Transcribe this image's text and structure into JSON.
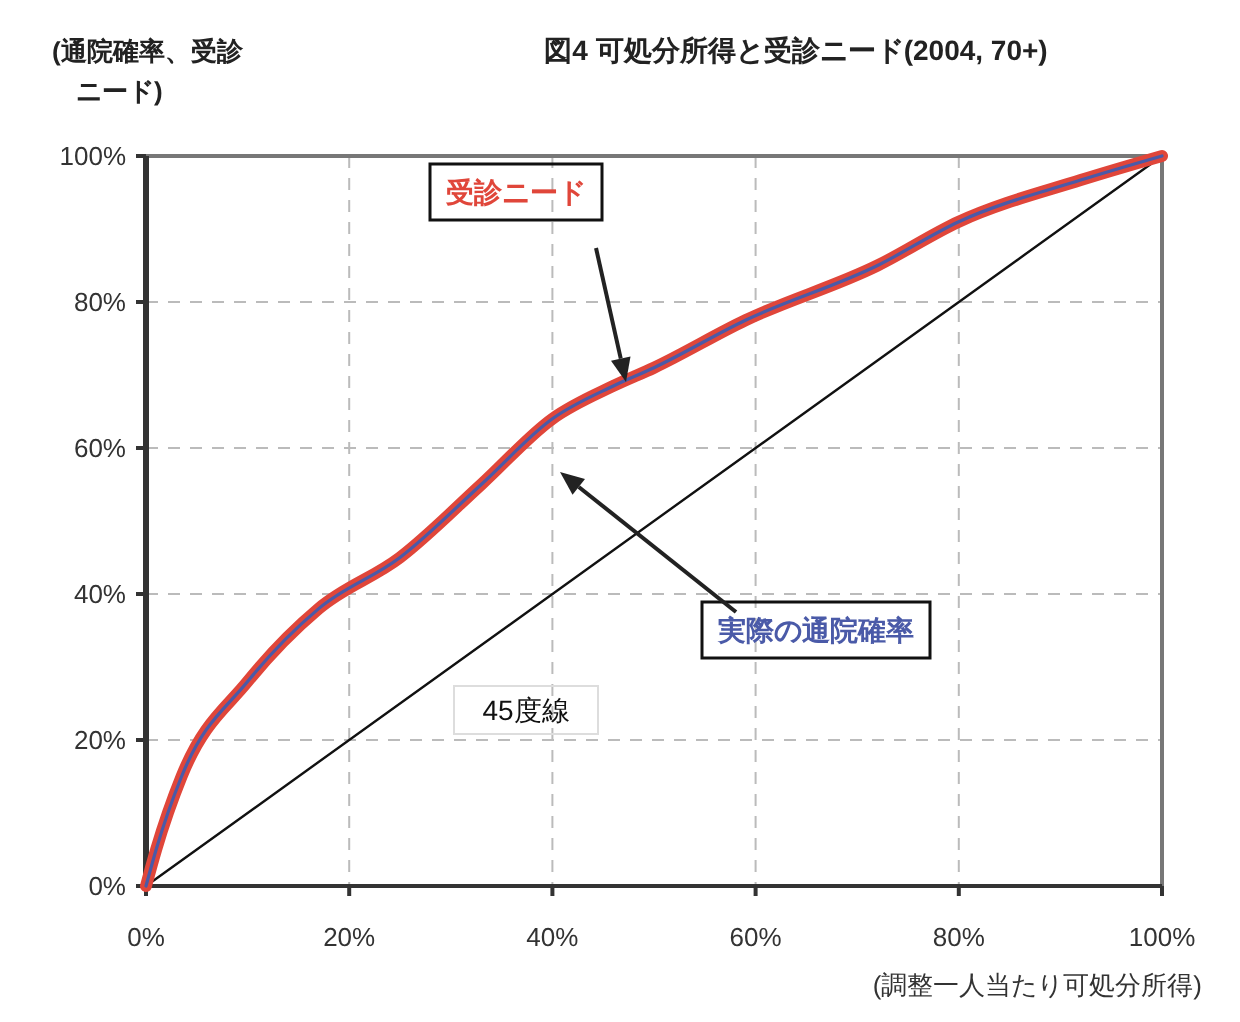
{
  "chart_data": {
    "type": "line",
    "title": "図4 可処分所得と受診ニード(2004, 70+)",
    "ylabel": "(通院確率、受診ニード)",
    "xlabel": "(調整一人当たり可処分所得)",
    "x": [
      0,
      1,
      3.5,
      10,
      17,
      25,
      33,
      40,
      46,
      50,
      59,
      72,
      80,
      92,
      100
    ],
    "series": [
      {
        "name": "受診ニード",
        "color": "#e0463a",
        "values": [
          0,
          5,
          15,
          28,
          38,
          45,
          55,
          64,
          68.5,
          71,
          77.5,
          85,
          91,
          96.7,
          100
        ]
      },
      {
        "name": "実際の通院確率",
        "color": "#4a5aa8",
        "values": [
          0,
          5,
          15,
          28,
          38,
          45,
          55,
          64,
          68.5,
          71,
          77.5,
          85,
          91,
          96.7,
          100
        ]
      },
      {
        "name": "45度線",
        "color": "#111111",
        "x": [
          0,
          100
        ],
        "values": [
          0,
          100
        ]
      }
    ],
    "xlim": [
      0,
      100
    ],
    "ylim": [
      0,
      100
    ],
    "xticks": [
      {
        "value": 0,
        "label": "0%"
      },
      {
        "value": 20,
        "label": "20%"
      },
      {
        "value": 40,
        "label": "40%"
      },
      {
        "value": 60,
        "label": "60%"
      },
      {
        "value": 80,
        "label": "80%"
      },
      {
        "value": 100,
        "label": "100%"
      }
    ],
    "yticks": [
      {
        "value": 0,
        "label": "0%"
      },
      {
        "value": 20,
        "label": "20%"
      },
      {
        "value": 40,
        "label": "40%"
      },
      {
        "value": 60,
        "label": "60%"
      },
      {
        "value": 80,
        "label": "80%"
      },
      {
        "value": 100,
        "label": "100%"
      }
    ],
    "grid": true,
    "legend": false
  }
}
